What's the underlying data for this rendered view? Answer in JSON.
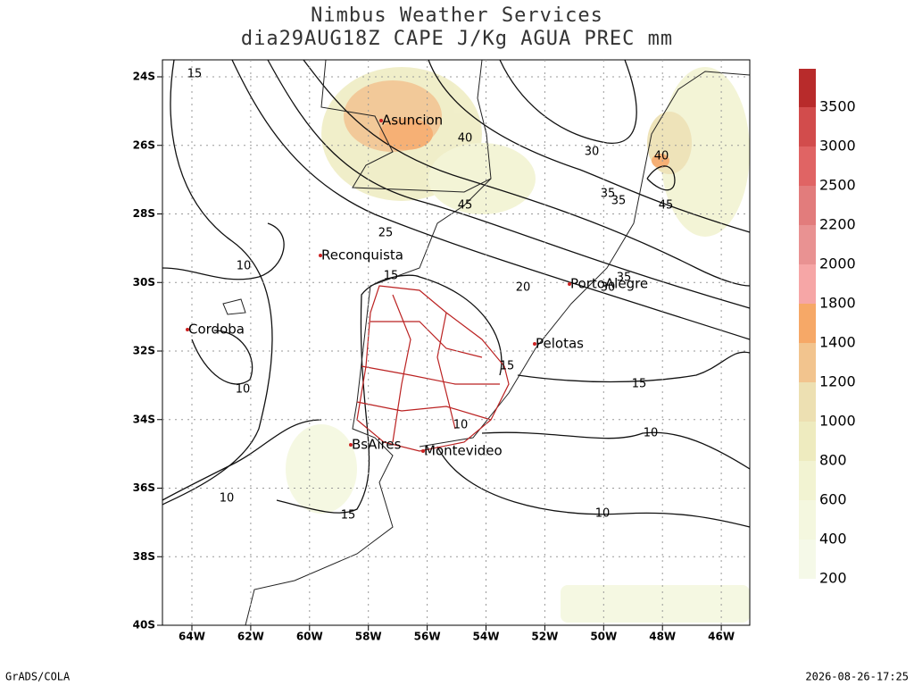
{
  "header": {
    "title": "Nimbus Weather Services",
    "subtitle": "dia29AUG18Z CAPE J/Kg AGUA PREC mm"
  },
  "map": {
    "lat_labels": [
      "24S",
      "26S",
      "28S",
      "30S",
      "32S",
      "34S",
      "36S",
      "38S",
      "40S"
    ],
    "lon_labels": [
      "64W",
      "62W",
      "60W",
      "58W",
      "56W",
      "54W",
      "52W",
      "50W",
      "48W",
      "46W"
    ],
    "cities": [
      "Asuncion",
      "Reconquista",
      "Cordoba",
      "PortoAlegre",
      "Pelotas",
      "BsAires",
      "Montevideo"
    ],
    "contour_labels": [
      "15",
      "40",
      "30",
      "35",
      "35",
      "40",
      "45",
      "45",
      "25",
      "10",
      "15",
      "20",
      "35",
      "30",
      "10",
      "15",
      "15",
      "10",
      "10",
      "10",
      "15",
      "10"
    ]
  },
  "colorbar": {
    "labels": [
      "200",
      "400",
      "600",
      "800",
      "1000",
      "1200",
      "1400",
      "1800",
      "2000",
      "2200",
      "2500",
      "3000",
      "3500"
    ],
    "colors": [
      "#f5f9e8",
      "#f4f7df",
      "#f2f3d2",
      "#eeebbf",
      "#ede0b2",
      "#f2c48e",
      "#f6a867",
      "#f6a6a6",
      "#e99292",
      "#e27c7c",
      "#e06464",
      "#d24c4c",
      "#b82b2b"
    ]
  },
  "footer": {
    "left": "GrADS/COLA",
    "right": "2026-08-26-17:25"
  }
}
